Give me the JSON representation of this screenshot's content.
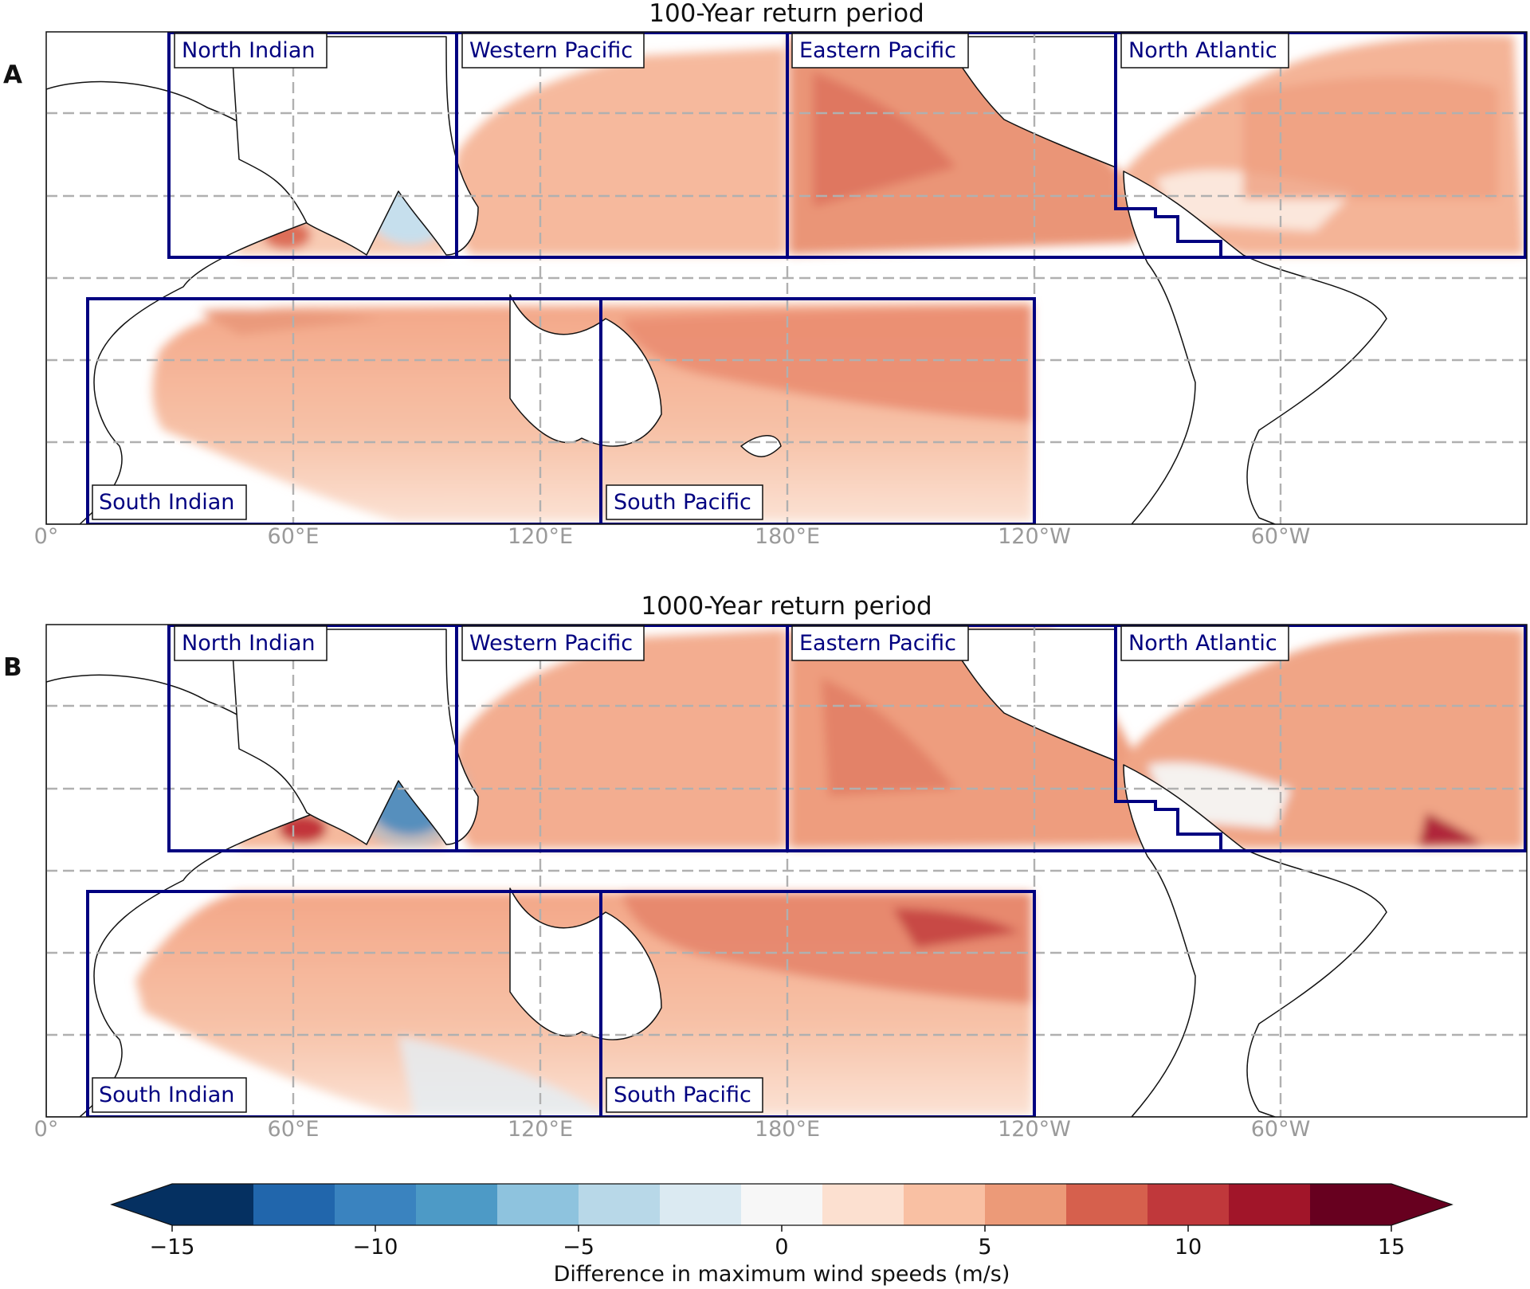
{
  "panels": [
    {
      "letter": "A",
      "title": "100-Year return period",
      "basins": {
        "north_indian": "North Indian",
        "western_pacific": "Western Pacific",
        "eastern_pacific": "Eastern Pacific",
        "north_atlantic": "North Atlantic",
        "south_indian": "South Indian",
        "south_pacific": "South Pacific"
      },
      "lon_ticks": [
        "0°",
        "60°E",
        "120°E",
        "180°E",
        "120°W",
        "60°W"
      ]
    },
    {
      "letter": "B",
      "title": "1000-Year return period",
      "basins": {
        "north_indian": "North Indian",
        "western_pacific": "Western Pacific",
        "eastern_pacific": "Eastern Pacific",
        "north_atlantic": "North Atlantic",
        "south_indian": "South Indian",
        "south_pacific": "South Pacific"
      },
      "lon_ticks": [
        "0°",
        "60°E",
        "120°E",
        "180°E",
        "120°W",
        "60°W"
      ]
    }
  ],
  "colorbar": {
    "label": "Difference in maximum wind speeds (m/s)",
    "tick_labels": [
      "−15",
      "−10",
      "−5",
      "0",
      "5",
      "10",
      "15"
    ],
    "min": -15,
    "max": 15,
    "extend": "both",
    "colors": [
      "#053061",
      "#2166ac",
      "#3a83bf",
      "#4d9ac6",
      "#8ec3de",
      "#b8d8e8",
      "#dbeaf2",
      "#f7f7f7",
      "#fce0d0",
      "#f9c0a3",
      "#ec9a78",
      "#d6604d",
      "#c0383b",
      "#a11529",
      "#67001f"
    ]
  },
  "colors": {
    "basin_box": "#000080",
    "basin_label": "#000080",
    "gridline": "#b0b0b0",
    "tick_label": "#9a9a9a",
    "land_outline": "#111111"
  }
}
